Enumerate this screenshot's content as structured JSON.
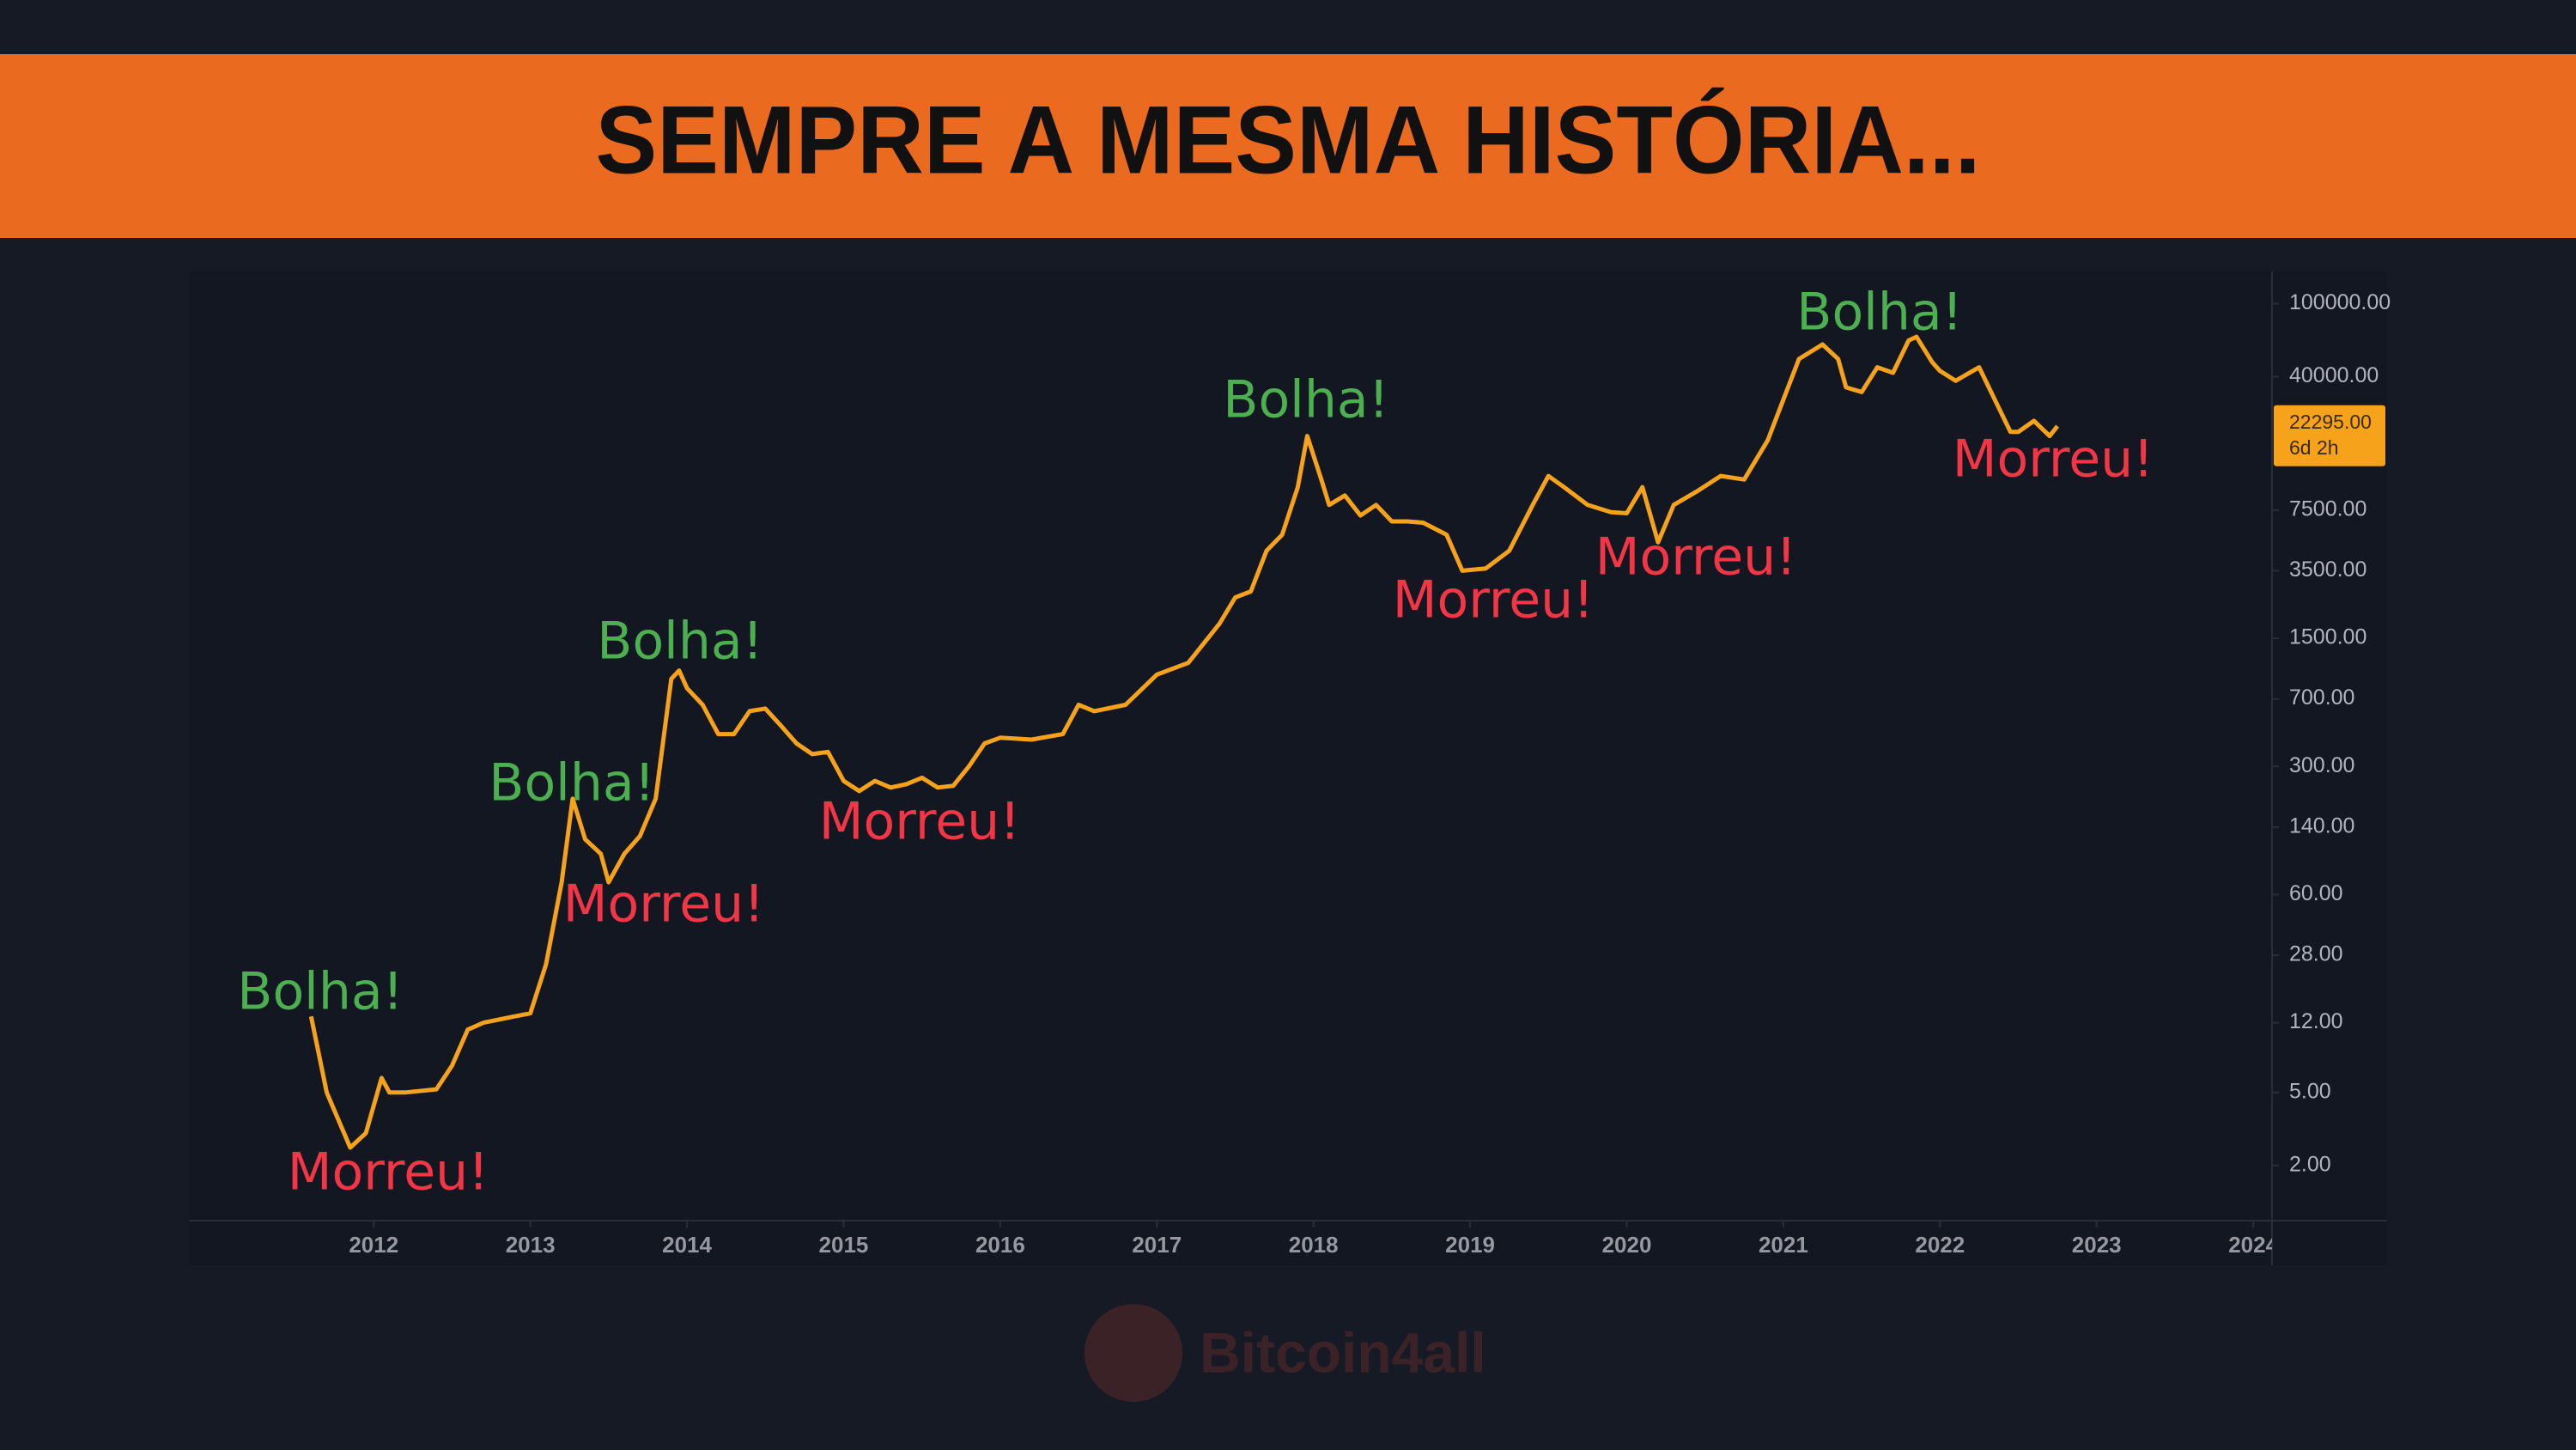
{
  "header": {
    "title": "SEMPRE A MESMA HISTÓRIA..."
  },
  "watermark": "Bitcoin4all",
  "chart_data": {
    "type": "line",
    "color": "#f7a21b",
    "log_scale": true,
    "grid": false,
    "xlim": [
      2010.82,
      2024.12
    ],
    "ylim": [
      1,
      150000
    ],
    "xticks": [
      2012,
      2013,
      2014,
      2015,
      2016,
      2017,
      2018,
      2019,
      2020,
      2021,
      2022,
      2023,
      2024
    ],
    "yticks": [
      {
        "value": 100000,
        "label": "100000.00"
      },
      {
        "value": 40000,
        "label": "40000.00"
      },
      {
        "value": 7500,
        "label": "7500.00"
      },
      {
        "value": 3500,
        "label": "3500.00"
      },
      {
        "value": 1500,
        "label": "1500.00"
      },
      {
        "value": 700,
        "label": "700.00"
      },
      {
        "value": 300,
        "label": "300.00"
      },
      {
        "value": 140,
        "label": "140.00"
      },
      {
        "value": 60,
        "label": "60.00"
      },
      {
        "value": 28,
        "label": "28.00"
      },
      {
        "value": 12,
        "label": "12.00"
      },
      {
        "value": 5,
        "label": "5.00"
      },
      {
        "value": 2,
        "label": "2.00"
      }
    ],
    "last_price": {
      "value": 22295,
      "label": "22295.00"
    },
    "countdown": "6d 2h",
    "x": [
      2011.6,
      2011.7,
      2011.85,
      2011.95,
      2012.05,
      2012.1,
      2012.2,
      2012.4,
      2012.5,
      2012.6,
      2012.7,
      2012.9,
      2013.0,
      2013.1,
      2013.2,
      2013.27,
      2013.35,
      2013.45,
      2013.5,
      2013.6,
      2013.7,
      2013.8,
      2013.9,
      2013.95,
      2014.0,
      2014.1,
      2014.2,
      2014.3,
      2014.4,
      2014.5,
      2014.6,
      2014.7,
      2014.8,
      2014.9,
      2015.0,
      2015.1,
      2015.2,
      2015.3,
      2015.4,
      2015.5,
      2015.6,
      2015.7,
      2015.8,
      2015.9,
      2016.0,
      2016.2,
      2016.4,
      2016.5,
      2016.6,
      2016.8,
      2017.0,
      2017.2,
      2017.4,
      2017.5,
      2017.6,
      2017.7,
      2017.8,
      2017.9,
      2017.96,
      2018.05,
      2018.1,
      2018.2,
      2018.3,
      2018.4,
      2018.5,
      2018.6,
      2018.7,
      2018.85,
      2018.95,
      2019.1,
      2019.25,
      2019.4,
      2019.5,
      2019.6,
      2019.75,
      2019.9,
      2020.0,
      2020.1,
      2020.2,
      2020.3,
      2020.45,
      2020.6,
      2020.75,
      2020.9,
      2021.0,
      2021.1,
      2021.25,
      2021.35,
      2021.4,
      2021.5,
      2021.6,
      2021.7,
      2021.8,
      2021.85,
      2021.95,
      2022.0,
      2022.1,
      2022.25,
      2022.35,
      2022.45,
      2022.5,
      2022.6,
      2022.7,
      2022.75
    ],
    "values": [
      13,
      5,
      2.5,
      3,
      6,
      5,
      5,
      5.2,
      7,
      11,
      12,
      13,
      13.5,
      25,
      70,
      200,
      120,
      100,
      70,
      100,
      125,
      200,
      900,
      1000,
      800,
      650,
      450,
      450,
      600,
      620,
      500,
      400,
      350,
      360,
      250,
      220,
      250,
      230,
      240,
      260,
      230,
      235,
      300,
      400,
      430,
      420,
      450,
      650,
      600,
      650,
      950,
      1100,
      1800,
      2500,
      2700,
      4500,
      5500,
      10000,
      19000,
      11000,
      8000,
      9000,
      7000,
      8000,
      6500,
      6500,
      6400,
      5500,
      3500,
      3600,
      4500,
      8000,
      11500,
      10000,
      8000,
      7300,
      7200,
      10000,
      5000,
      8000,
      9500,
      11500,
      11000,
      18000,
      30000,
      50000,
      60000,
      50000,
      35000,
      33000,
      45000,
      42000,
      63000,
      66000,
      48000,
      43000,
      38000,
      45000,
      30000,
      20000,
      20000,
      23000,
      19000,
      21500
    ],
    "annotations": [
      {
        "text": "Bolha!",
        "color": "#4caf50"
      },
      {
        "text": "Morreu!",
        "color": "#f23645"
      },
      {
        "text": "Bolha!",
        "color": "#4caf50"
      },
      {
        "text": "Morreu!",
        "color": "#f23645"
      },
      {
        "text": "Bolha!",
        "color": "#4caf50"
      },
      {
        "text": "Morreu!",
        "color": "#f23645"
      },
      {
        "text": "Bolha!",
        "color": "#4caf50"
      },
      {
        "text": "Morreu!",
        "color": "#f23645"
      },
      {
        "text": "Morreu!",
        "color": "#f23645"
      },
      {
        "text": "Bolha!",
        "color": "#4caf50"
      },
      {
        "text": "Morreu!",
        "color": "#f23645"
      }
    ]
  }
}
